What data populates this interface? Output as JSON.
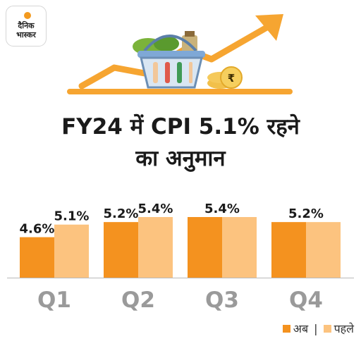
{
  "brand": {
    "line1": "दैनिक",
    "line2": "भास्कर"
  },
  "title_line1": "FY24 में CPI 5.1% रहने",
  "title_line2": "का अनुमान",
  "currency_symbol": "₹",
  "colors": {
    "now": "#f4921f",
    "before": "#fcc37f",
    "axis": "#b9b9b9",
    "quarter_label": "#9a9a9a",
    "brand": "#f39a1f"
  },
  "chart_data": {
    "type": "bar",
    "categories": [
      "Q1",
      "Q2",
      "Q3",
      "Q4"
    ],
    "series": [
      {
        "name": "अब",
        "values": [
          4.6,
          5.2,
          5.4,
          5.2
        ],
        "labels": [
          "4.6%",
          "5.2%",
          "5.4%",
          "5.2%"
        ]
      },
      {
        "name": "पहले",
        "values": [
          5.1,
          5.4,
          5.4,
          5.2
        ],
        "labels": [
          "5.1%",
          "5.4%",
          "",
          ""
        ]
      }
    ],
    "legend": {
      "position": "bottom-right",
      "separator": "|"
    }
  }
}
